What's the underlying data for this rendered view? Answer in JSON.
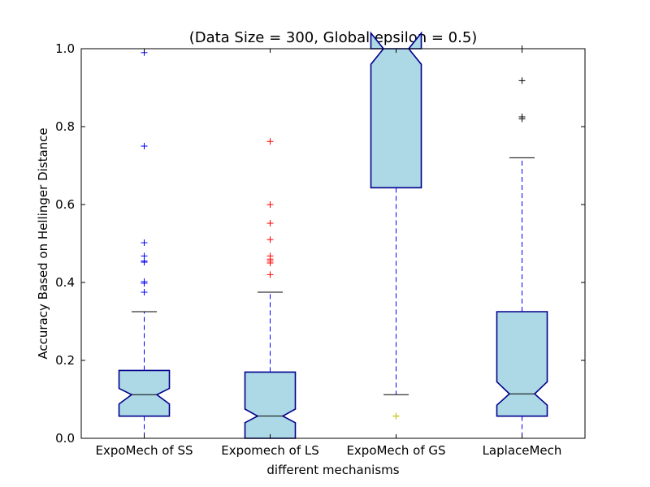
{
  "chart_data": {
    "type": "boxplot",
    "title": "(Data Size = 300, Global epsilon = 0.5)",
    "xlabel": "different mechanisms",
    "ylabel": "Accuracy Based on Hellinger Distance",
    "ylim": [
      0.0,
      1.0
    ],
    "yticks": [
      "0.0",
      "0.2",
      "0.4",
      "0.6",
      "0.8",
      "1.0"
    ],
    "grid": false,
    "notched": true,
    "box_fill_color": "#add8e6",
    "box_edge_color": "#00008b",
    "whisker_color": "#0000ff",
    "cap_color": "#000000",
    "median_color": "#000000",
    "categories": [
      "ExpoMech of SS",
      "Expomech of LS",
      "ExpoMech of GS",
      "LaplaceMech"
    ],
    "boxes": [
      {
        "label": "ExpoMech of SS",
        "whislo": 0.0,
        "q1": 0.057,
        "med": 0.112,
        "q3": 0.174,
        "whishi": 0.325,
        "notch_lo": 0.088,
        "notch_hi": 0.128,
        "flier_color": "#0000ff",
        "fliers": [
          0.99,
          0.75,
          0.502,
          0.468,
          0.455,
          0.452,
          0.402,
          0.398,
          0.375
        ]
      },
      {
        "label": "Expomech of LS",
        "whislo": 0.0,
        "q1": 0.0,
        "med": 0.057,
        "q3": 0.17,
        "whishi": 0.375,
        "notch_lo": 0.04,
        "notch_hi": 0.075,
        "flier_color": "#ff0000",
        "fliers": [
          0.762,
          0.6,
          0.552,
          0.51,
          0.468,
          0.46,
          0.455,
          0.45,
          0.42
        ]
      },
      {
        "label": "ExpoMech of GS",
        "whislo": 0.112,
        "q1": 0.643,
        "med": 1.0,
        "q3": 1.0,
        "whishi": 1.0,
        "notch_lo": 0.96,
        "notch_hi": 1.04,
        "flier_color": "#bfbf00",
        "fliers": [
          0.057,
          0.057
        ]
      },
      {
        "label": "LaplaceMech",
        "whislo": 0.0,
        "q1": 0.057,
        "med": 0.114,
        "q3": 0.325,
        "whishi": 0.72,
        "notch_lo": 0.085,
        "notch_hi": 0.145,
        "flier_color": "#000000",
        "fliers": [
          1.0,
          0.918,
          0.825,
          0.82
        ]
      }
    ]
  }
}
